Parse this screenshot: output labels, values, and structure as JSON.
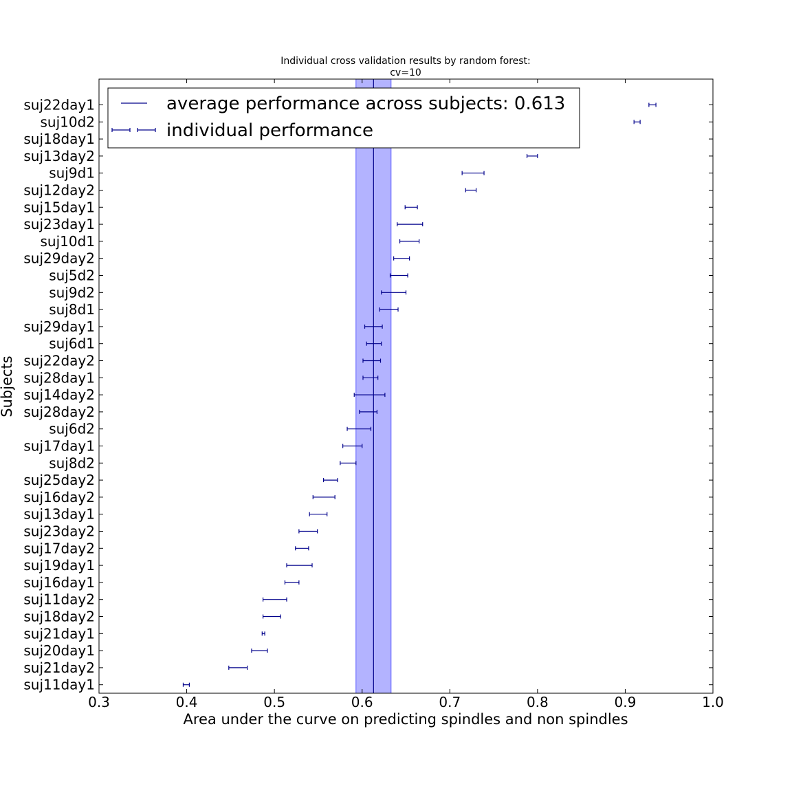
{
  "chart_data": {
    "type": "errorbar",
    "title": "Individual cross validation results by random forest:",
    "subtitle": "cv=10",
    "xlabel": "Area under the curve on predicting spindles and non spindles",
    "ylabel": "Subjects",
    "xlim": [
      0.3,
      1.0
    ],
    "xticks": [
      "0.3",
      "0.4",
      "0.5",
      "0.6",
      "0.7",
      "0.8",
      "0.9",
      "1.0"
    ],
    "grid": false,
    "legend": {
      "placement": "top-left",
      "entries": [
        "average performance across subjects: 0.613",
        "individual performance"
      ]
    },
    "average": {
      "value": 0.613,
      "band": [
        0.593,
        0.633
      ]
    },
    "subjects": [
      {
        "label": "suj22day1",
        "low": 0.927,
        "high": 0.935
      },
      {
        "label": "suj10d2",
        "low": 0.91,
        "high": 0.917
      },
      {
        "label": "suj18day1",
        "low": null,
        "high": null
      },
      {
        "label": "suj13day2",
        "low": 0.788,
        "high": 0.8
      },
      {
        "label": "suj9d1",
        "low": 0.714,
        "high": 0.739
      },
      {
        "label": "suj12day2",
        "low": 0.718,
        "high": 0.73
      },
      {
        "label": "suj15day1",
        "low": 0.649,
        "high": 0.663
      },
      {
        "label": "suj23day1",
        "low": 0.64,
        "high": 0.669
      },
      {
        "label": "suj10d1",
        "low": 0.643,
        "high": 0.665
      },
      {
        "label": "suj29day2",
        "low": 0.636,
        "high": 0.654
      },
      {
        "label": "suj5d2",
        "low": 0.632,
        "high": 0.652
      },
      {
        "label": "suj9d2",
        "low": 0.622,
        "high": 0.65
      },
      {
        "label": "suj8d1",
        "low": 0.62,
        "high": 0.641
      },
      {
        "label": "suj29day1",
        "low": 0.603,
        "high": 0.623
      },
      {
        "label": "suj6d1",
        "low": 0.605,
        "high": 0.622
      },
      {
        "label": "suj22day2",
        "low": 0.601,
        "high": 0.621
      },
      {
        "label": "suj28day1",
        "low": 0.601,
        "high": 0.618
      },
      {
        "label": "suj14day2",
        "low": 0.591,
        "high": 0.626
      },
      {
        "label": "suj28day2",
        "low": 0.597,
        "high": 0.617
      },
      {
        "label": "suj6d2",
        "low": 0.583,
        "high": 0.61
      },
      {
        "label": "suj17day1",
        "low": 0.578,
        "high": 0.6
      },
      {
        "label": "suj8d2",
        "low": 0.575,
        "high": 0.593
      },
      {
        "label": "suj25day2",
        "low": 0.556,
        "high": 0.572
      },
      {
        "label": "suj16day2",
        "low": 0.544,
        "high": 0.569
      },
      {
        "label": "suj13day1",
        "low": 0.54,
        "high": 0.56
      },
      {
        "label": "suj23day2",
        "low": 0.528,
        "high": 0.549
      },
      {
        "label": "suj17day2",
        "low": 0.524,
        "high": 0.539
      },
      {
        "label": "suj19day1",
        "low": 0.514,
        "high": 0.543
      },
      {
        "label": "suj16day1",
        "low": 0.512,
        "high": 0.528
      },
      {
        "label": "suj11day2",
        "low": 0.487,
        "high": 0.514
      },
      {
        "label": "suj18day2",
        "low": 0.487,
        "high": 0.507
      },
      {
        "label": "suj21day1",
        "low": 0.486,
        "high": 0.489
      },
      {
        "label": "suj20day1",
        "low": 0.474,
        "high": 0.492
      },
      {
        "label": "suj21day2",
        "low": 0.448,
        "high": 0.469
      },
      {
        "label": "suj11day1",
        "low": 0.396,
        "high": 0.403
      }
    ],
    "colors": {
      "line": "#00008b",
      "band_fill": "#8a8aff",
      "axis": "#000000",
      "background": "#ffffff"
    }
  }
}
